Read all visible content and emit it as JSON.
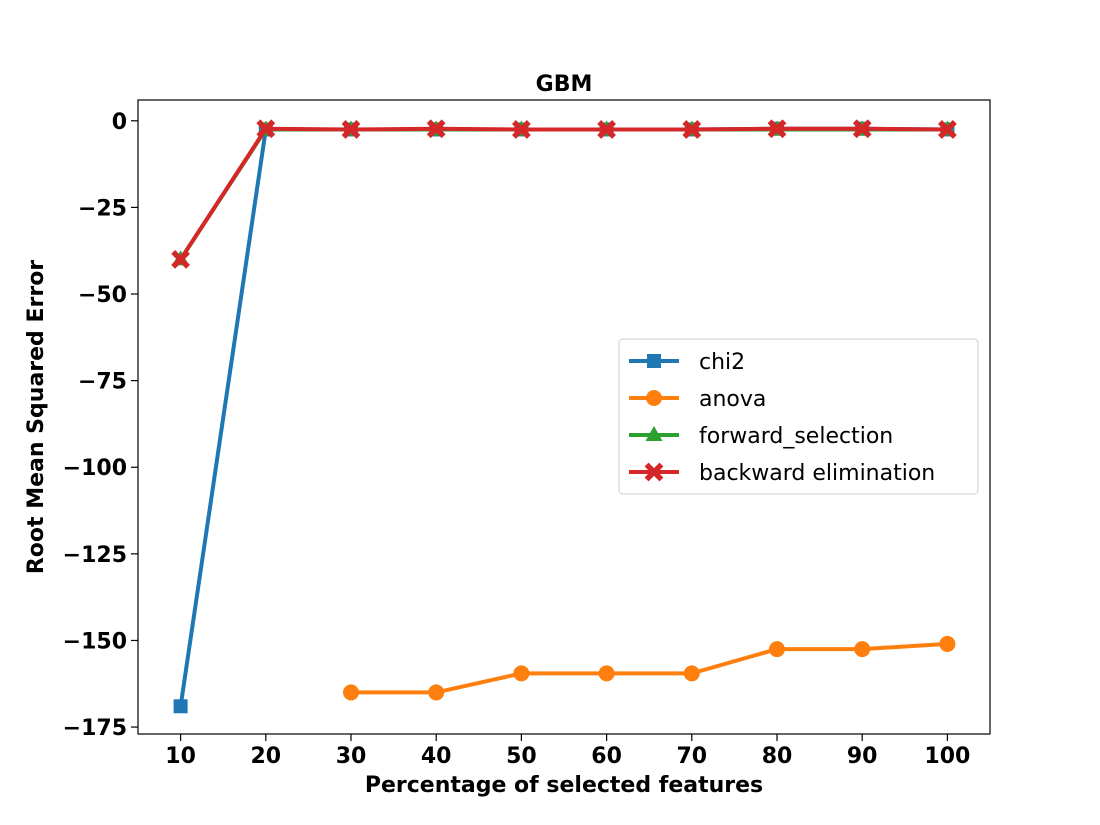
{
  "chart_data": {
    "type": "line",
    "title": "GBM",
    "xlabel": "Percentage of selected features",
    "ylabel": "Root Mean Squared Error",
    "x": [
      10,
      20,
      30,
      40,
      50,
      60,
      70,
      80,
      90,
      100
    ],
    "xlim": [
      5,
      105
    ],
    "ylim": [
      -177,
      6
    ],
    "xticks": [
      10,
      20,
      30,
      40,
      50,
      60,
      70,
      80,
      90,
      100
    ],
    "yticks": [
      0,
      -25,
      -50,
      -75,
      -100,
      -125,
      -150,
      -175
    ],
    "ytick_labels": [
      "0",
      "−25",
      "−50",
      "−75",
      "−100",
      "−125",
      "−150",
      "−175"
    ],
    "grid": false,
    "legend_position": "center-right",
    "series": [
      {
        "name": "chi2",
        "color": "#1f77b4",
        "marker": "square",
        "values": [
          -169,
          -2.5,
          -2.5,
          -2.5,
          -2.5,
          -2.5,
          -2.5,
          -2.3,
          -2.3,
          -2.5
        ]
      },
      {
        "name": "anova",
        "color": "#ff7f0e",
        "marker": "circle",
        "values": [
          null,
          null,
          -165,
          -165,
          -159.5,
          -159.5,
          -159.5,
          -152.5,
          -152.5,
          -151
        ]
      },
      {
        "name": "forward_selection",
        "color": "#2ca02c",
        "marker": "triangle",
        "values": [
          -40,
          -2.5,
          -2.5,
          -2.5,
          -2.5,
          -2.5,
          -2.5,
          -2.5,
          -2.5,
          -2.5
        ]
      },
      {
        "name": "backward elimination",
        "color": "#d62728",
        "marker": "x",
        "values": [
          -40,
          -2.3,
          -2.5,
          -2.3,
          -2.5,
          -2.5,
          -2.5,
          -2.3,
          -2.3,
          -2.5
        ]
      }
    ]
  }
}
